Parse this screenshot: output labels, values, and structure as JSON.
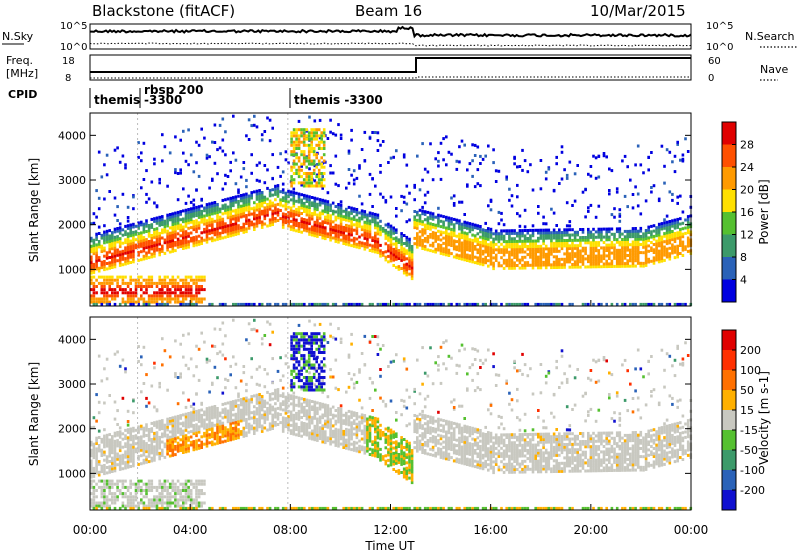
{
  "header": {
    "station": "Blackstone (fitACF)",
    "beam": "Beam 16",
    "date": "10/Mar/2015"
  },
  "strips": {
    "nsky_label": "N.Sky",
    "nsky_tick_top": "10^5",
    "nsky_tick_bottom": "10^0",
    "nsky_right_top": "10^5",
    "nsky_right_bottom": "10^0",
    "nsearch_label": "N.Search",
    "freq_label_top": "Freq.",
    "freq_label_bottom": "[MHz]",
    "freq_tick_top": "18",
    "freq_tick_bottom": "8",
    "nave_tick_top": "60",
    "nave_tick_bottom": "0",
    "nave_label": "Nave",
    "cpid_label": "CPID",
    "cpid_segments": [
      {
        "line1": "themis",
        "line2": ""
      },
      {
        "line1": "rbsp 200",
        "line2": "-3300"
      },
      {
        "line1": "themis -3300",
        "line2": ""
      }
    ]
  },
  "axes": {
    "x_ticks": [
      "00:00",
      "04:00",
      "08:00",
      "12:00",
      "16:00",
      "20:00",
      "00:00"
    ],
    "x_label": "Time UT",
    "y_label": "Slant Range [km]",
    "y_ticks": [
      "1000",
      "2000",
      "3000",
      "4000"
    ]
  },
  "power_colorbar": {
    "label": "Power [dB]",
    "ticks": [
      "4",
      "8",
      "12",
      "16",
      "20",
      "24",
      "28"
    ],
    "colors": [
      "#0000e0",
      "#2a62b8",
      "#3c9a6a",
      "#55c030",
      "#ffe000",
      "#ff9a00",
      "#ff5000",
      "#e00000"
    ]
  },
  "velocity_colorbar": {
    "label": "Velocity [m s-1]",
    "ticks": [
      "200",
      "100",
      "50",
      "15",
      "-15",
      "-50",
      "-100",
      "-200"
    ],
    "colors": [
      "#1010d0",
      "#2a62b8",
      "#3c9a6a",
      "#55c030",
      "#c8c8c0",
      "#ffb000",
      "#ff7000",
      "#ff3000",
      "#e00000"
    ]
  },
  "chart_data": [
    {
      "type": "line",
      "title": "",
      "series": [
        {
          "name": "N.Sky"
        },
        {
          "name": "N.Search"
        }
      ],
      "y_scale": "log"
    },
    {
      "type": "line",
      "series": [
        {
          "name": "Freq."
        },
        {
          "name": "Nave"
        }
      ],
      "x": [
        "00:00",
        "13:00",
        "13:00",
        "24:00"
      ],
      "values_freq": [
        12,
        12,
        18,
        18
      ]
    },
    {
      "type": "heatmap",
      "title": "",
      "quantity": "Power",
      "x_range_hours": [
        0,
        24
      ],
      "y_range_km": [
        180,
        4500
      ],
      "color_range": [
        0,
        30
      ],
      "grid": false
    },
    {
      "type": "heatmap",
      "title": "",
      "quantity": "Velocity",
      "x_range_hours": [
        0,
        24
      ],
      "y_range_km": [
        180,
        4500
      ],
      "color_range": [
        -200,
        200
      ],
      "grid": false
    }
  ]
}
